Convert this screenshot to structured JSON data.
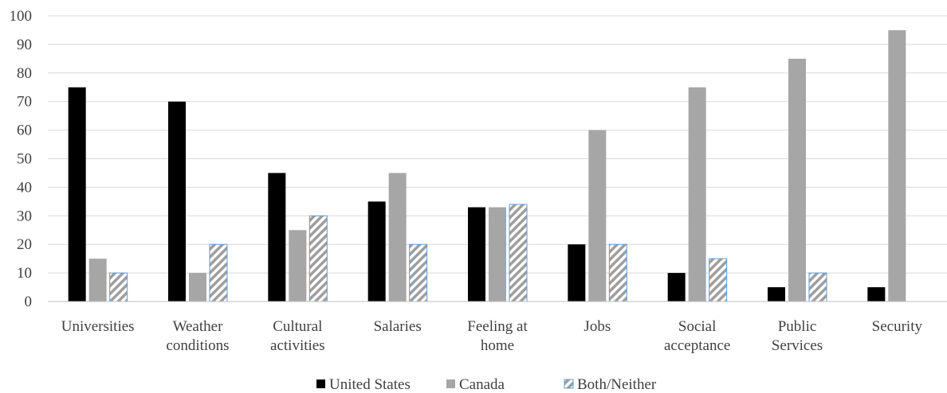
{
  "chart_data": {
    "type": "bar",
    "categories": [
      [
        "Universities"
      ],
      [
        "Weather",
        "conditions"
      ],
      [
        "Cultural",
        "activities"
      ],
      [
        "Salaries"
      ],
      [
        "Feeling at",
        "home"
      ],
      [
        "Jobs"
      ],
      [
        "Social",
        "acceptance"
      ],
      [
        "Public",
        "Services"
      ],
      [
        "Security"
      ]
    ],
    "series": [
      {
        "name": "United States",
        "style": "solid",
        "color": "#000000",
        "values": [
          75,
          70,
          45,
          35,
          33,
          20,
          10,
          5,
          5
        ]
      },
      {
        "name": "Canada",
        "style": "solid",
        "color": "#a6a6a6",
        "values": [
          15,
          10,
          25,
          45,
          33,
          60,
          75,
          85,
          95
        ]
      },
      {
        "name": "Both/Neither",
        "style": "hatched",
        "color": "#9e9e9e",
        "border": "#5b9bd5",
        "values": [
          10,
          20,
          30,
          20,
          34,
          20,
          15,
          10,
          0
        ]
      }
    ],
    "yticks": [
      0,
      10,
      20,
      30,
      40,
      50,
      60,
      70,
      80,
      90,
      100
    ],
    "ylim": [
      0,
      100
    ],
    "grid": true,
    "legend_position": "bottom"
  }
}
